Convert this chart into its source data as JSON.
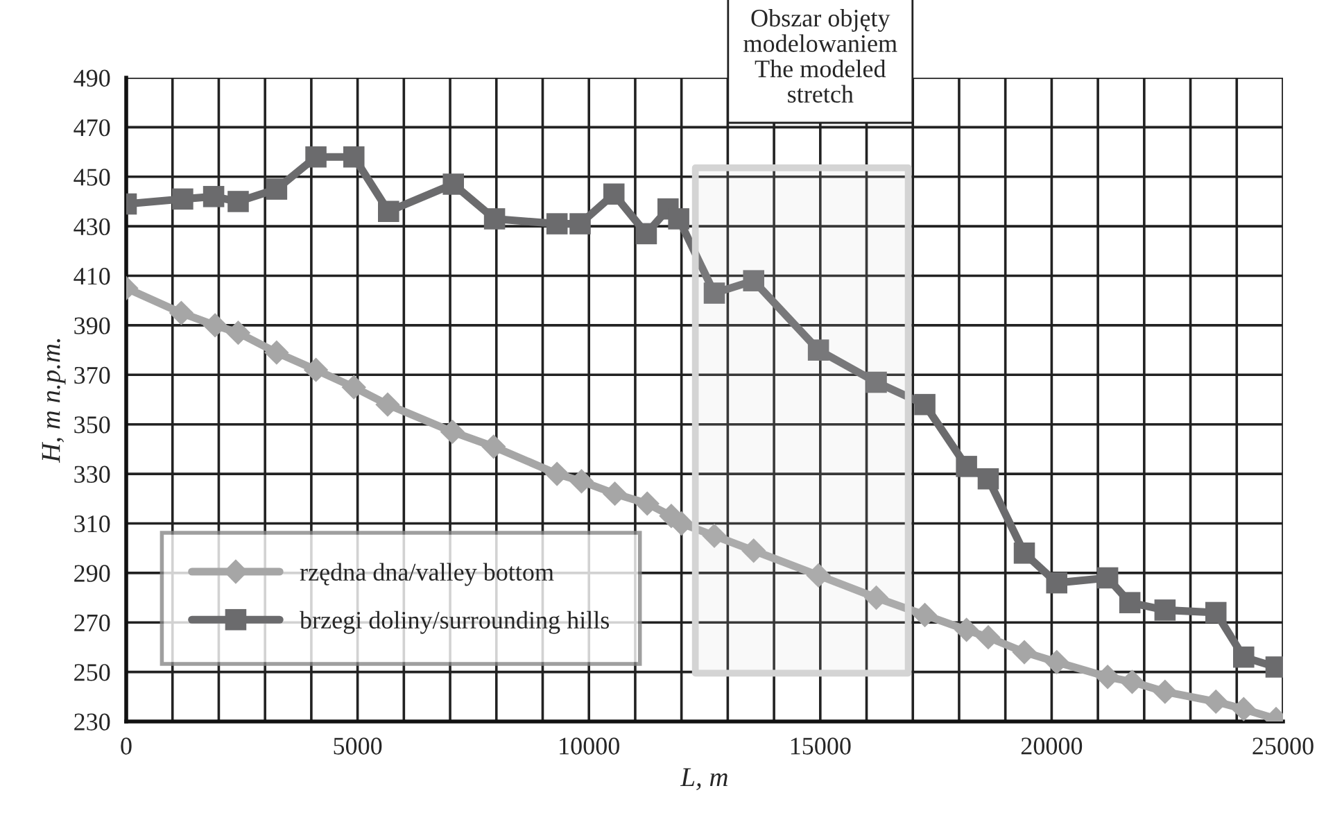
{
  "chart_data": {
    "type": "line",
    "xlabel": "L, m",
    "ylabel": "H, m n.p.m.",
    "xlim": [
      0,
      25000
    ],
    "ylim": [
      230,
      490
    ],
    "xticks": [
      0,
      {
        "value": 1000,
        "label": null
      },
      {
        "value": 2000,
        "label": null
      },
      {
        "value": 3000,
        "label": null
      },
      {
        "value": 4000,
        "label": null
      },
      5000,
      {
        "value": 6000,
        "label": null
      },
      {
        "value": 7000,
        "label": null
      },
      {
        "value": 8000,
        "label": null
      },
      {
        "value": 9000,
        "label": null
      },
      10000,
      {
        "value": 11000,
        "label": null
      },
      {
        "value": 12000,
        "label": null
      },
      {
        "value": 13000,
        "label": null
      },
      {
        "value": 14000,
        "label": null
      },
      15000,
      {
        "value": 16000,
        "label": null
      },
      {
        "value": 17000,
        "label": null
      },
      {
        "value": 18000,
        "label": null
      },
      {
        "value": 19000,
        "label": null
      },
      20000,
      {
        "value": 21000,
        "label": null
      },
      {
        "value": 22000,
        "label": null
      },
      {
        "value": 23000,
        "label": null
      },
      {
        "value": 24000,
        "label": null
      },
      25000
    ],
    "yticks": [
      230,
      250,
      270,
      290,
      310,
      330,
      350,
      370,
      390,
      410,
      430,
      450,
      470,
      490
    ],
    "grid": true,
    "legend": "bottom left",
    "line_style": "solid",
    "series": [
      {
        "name": "rzędna dna/valley bottom",
        "color": "#a6a6a6",
        "marker": "diamond",
        "x": [
          0,
          1190,
          1920,
          2420,
          3250,
          4100,
          4920,
          5650,
          7050,
          7940,
          9310,
          9840,
          10560,
          11260,
          11780,
          12000,
          12710,
          13560,
          14960,
          16210,
          17260,
          18160,
          18630,
          19410,
          20110,
          21210,
          21740,
          22450,
          23550,
          24150,
          24850
        ],
        "values": [
          405,
          395,
          390,
          387,
          379,
          372,
          365,
          358,
          347,
          341,
          330,
          327,
          322,
          318,
          313,
          310,
          305,
          299,
          289,
          280,
          273,
          267,
          264,
          258,
          254,
          248,
          246,
          242,
          238,
          235,
          231
        ]
      },
      {
        "name": "brzegi doliny/surrounding hills",
        "color": "#6b6b6d",
        "marker": "square",
        "x": [
          0,
          1220,
          1890,
          2420,
          3250,
          4100,
          4920,
          5670,
          7070,
          7960,
          9310,
          9810,
          10540,
          11240,
          11710,
          11940,
          12710,
          13560,
          14960,
          16210,
          17260,
          18160,
          18630,
          19410,
          20110,
          21210,
          21690,
          22450,
          23550,
          24150,
          24850
        ],
        "values": [
          439,
          441,
          442,
          440,
          445,
          458,
          458,
          436,
          447,
          433,
          431,
          431,
          443,
          427,
          437,
          433,
          403,
          408,
          380,
          367,
          358,
          333,
          328,
          298,
          286,
          288,
          278,
          275,
          274,
          256,
          252
        ]
      }
    ],
    "bands": [
      {
        "axis": "x",
        "from": 12300,
        "to": 16900,
        "label": "Obszar objęty\nmodelowaniem\nThe modeled\nstretch",
        "color": "#d4d4d4"
      }
    ]
  }
}
